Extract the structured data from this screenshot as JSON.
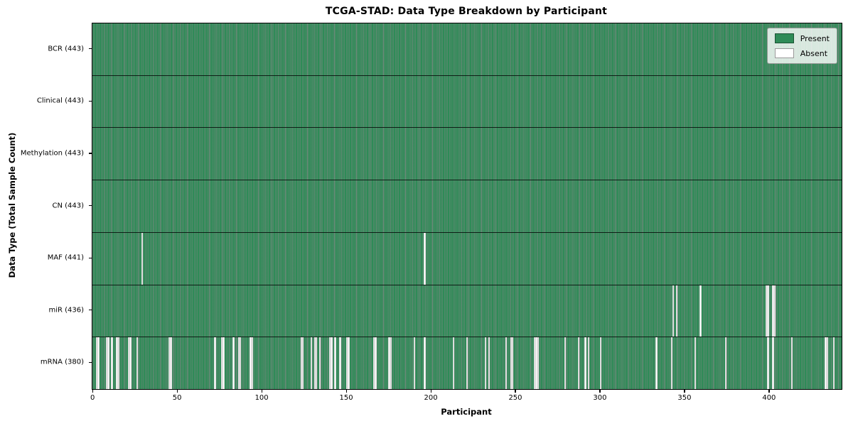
{
  "legend": {
    "present_label": "Present",
    "absent_label": "Absent"
  },
  "colors": {
    "present": "#2e8b57",
    "absent": "#ffffff",
    "bar_edge": "rgba(15,38,26,0.55)",
    "axis": "#000000"
  },
  "chart_data": {
    "type": "heatmap",
    "title": "TCGA-STAD: Data Type Breakdown by Participant",
    "xlabel": "Participant",
    "ylabel": "Data Type (Total Sample Count)",
    "n_participants": 443,
    "x_range": [
      -0.5,
      442.5
    ],
    "x_ticks": [
      0,
      50,
      100,
      150,
      200,
      250,
      300,
      350,
      400
    ],
    "grid": false,
    "legend_entries": [
      "Present",
      "Absent"
    ],
    "legend_position": "upper right",
    "rows": [
      {
        "label": "BCR (443)",
        "data_type": "BCR",
        "total_samples": 443,
        "absent_participants": []
      },
      {
        "label": "Clinical (443)",
        "data_type": "Clinical",
        "total_samples": 443,
        "absent_participants": []
      },
      {
        "label": "Methylation (443)",
        "data_type": "Methylation",
        "total_samples": 443,
        "absent_participants": []
      },
      {
        "label": "CN (443)",
        "data_type": "CN",
        "total_samples": 443,
        "absent_participants": []
      },
      {
        "label": "MAF (441)",
        "data_type": "MAF",
        "total_samples": 441,
        "absent_participants": [
          29,
          196
        ]
      },
      {
        "label": "miR (436)",
        "data_type": "miR",
        "total_samples": 436,
        "absent_participants": [
          343,
          345,
          359,
          398,
          399,
          402,
          403
        ]
      },
      {
        "label": "mRNA (380)",
        "data_type": "mRNA",
        "total_samples": 380,
        "absent_participants": [
          2,
          3,
          8,
          9,
          11,
          14,
          15,
          21,
          22,
          26,
          45,
          46,
          72,
          76,
          77,
          83,
          86,
          87,
          93,
          94,
          123,
          124,
          129,
          131,
          132,
          134,
          140,
          141,
          143,
          146,
          150,
          151,
          166,
          167,
          175,
          176,
          190,
          196,
          213,
          221,
          232,
          234,
          244,
          247,
          248,
          261,
          262,
          263,
          279,
          287,
          291,
          293,
          300,
          333,
          342,
          356,
          374,
          399,
          402,
          413,
          433,
          434,
          438
        ]
      }
    ]
  }
}
